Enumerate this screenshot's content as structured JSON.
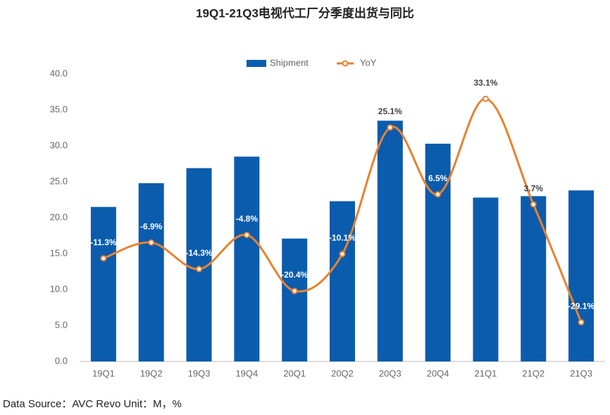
{
  "chart_data": {
    "type": "bar_line",
    "title": "19Q1-21Q3电视代工厂分季度出货与同比",
    "categories": [
      "19Q1",
      "19Q2",
      "19Q3",
      "19Q4",
      "20Q1",
      "20Q2",
      "20Q3",
      "20Q4",
      "21Q1",
      "21Q2",
      "21Q3"
    ],
    "series": [
      {
        "name": "Shipment",
        "color": "#0b5cad",
        "type": "bar",
        "values": [
          21.5,
          24.8,
          26.9,
          28.5,
          17.1,
          22.3,
          33.5,
          30.3,
          22.8,
          23.0,
          23.8
        ]
      },
      {
        "name": "YoY",
        "color": "#e8822f",
        "type": "line",
        "axis": "y2",
        "values": [
          -11.3,
          -6.9,
          -14.3,
          -4.8,
          -20.4,
          -10.1,
          25.1,
          6.5,
          33.1,
          3.7,
          -29.1
        ],
        "value_labels": [
          "-11.3%",
          "-6.9%",
          "-14.3%",
          "-4.8%",
          "-20.4%",
          "-10.1%",
          "25.1%",
          "6.5%",
          "33.1%",
          "3.7%",
          "-29.1%"
        ]
      }
    ],
    "ylim": [
      0,
      40
    ],
    "yticks": [
      {
        "value": 0,
        "label": "0.0"
      },
      {
        "value": 5,
        "label": "5.0"
      },
      {
        "value": 10,
        "label": "10.0"
      },
      {
        "value": 15,
        "label": "15.0"
      },
      {
        "value": 20,
        "label": "20.0"
      },
      {
        "value": 25,
        "label": "25.0"
      },
      {
        "value": 30,
        "label": "30.0"
      },
      {
        "value": 35,
        "label": "35.0"
      },
      {
        "value": 40,
        "label": "40.0"
      }
    ],
    "y2lim": [
      -40,
      40
    ],
    "grid": false,
    "legend": "top",
    "source": "Data Source：AVC Revo Unit：M，%"
  }
}
